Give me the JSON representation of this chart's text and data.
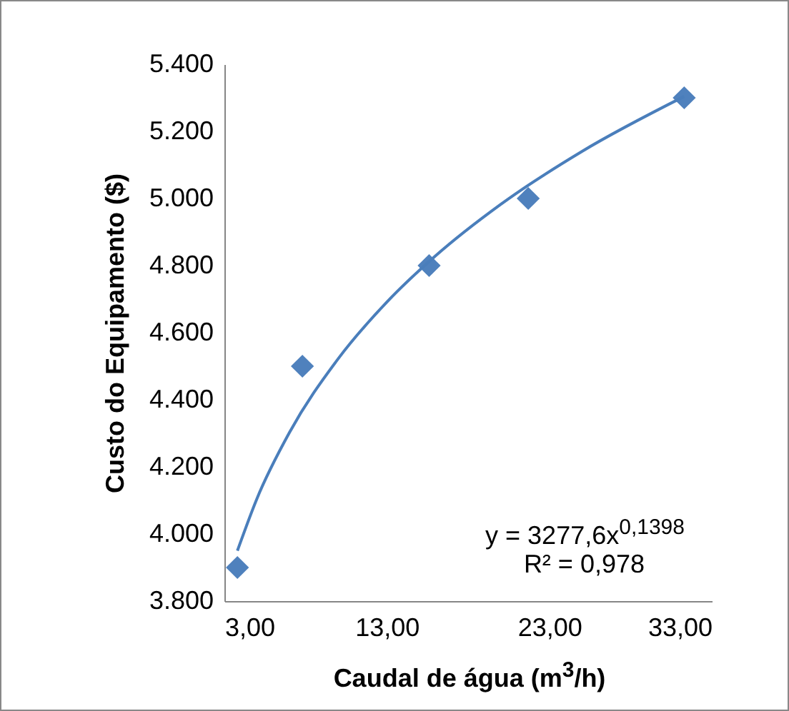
{
  "chart_data": {
    "type": "scatter",
    "xlabel": "Caudal de água (m$^{3}$/h)",
    "ylabel": "Custo do Equipamento ($)",
    "marker": "diamond",
    "xlim": [
      3,
      33
    ],
    "ylim": [
      3800,
      5400
    ],
    "xticks": [
      {
        "value": 3,
        "label": "3,00"
      },
      {
        "value": 13,
        "label": "13,00"
      },
      {
        "value": 23,
        "label": "23,00"
      },
      {
        "value": 33,
        "label": "33,00"
      }
    ],
    "yticks": [
      {
        "value": 3800,
        "label": "3.800"
      },
      {
        "value": 4000,
        "label": "4.000"
      },
      {
        "value": 4200,
        "label": "4.200"
      },
      {
        "value": 4400,
        "label": "4.400"
      },
      {
        "value": 4600,
        "label": "4.600"
      },
      {
        "value": 4800,
        "label": "4.800"
      },
      {
        "value": 5000,
        "label": "5.000"
      },
      {
        "value": 5200,
        "label": "5.200"
      },
      {
        "value": 5400,
        "label": "5.400"
      }
    ],
    "series": [
      {
        "color": "#4f81bd",
        "x": [
          3.8,
          7.8,
          15.6,
          21.7,
          31.3
        ],
        "values": [
          3900,
          4500,
          4800,
          5000,
          5300
        ]
      },
      {
        "type": "line",
        "marker": "none",
        "color": "#4a7ebb",
        "x": [
          3.8,
          5,
          7,
          10,
          13,
          16,
          20,
          25,
          31.3
        ],
        "values": [
          3950,
          4105,
          4302,
          4522,
          4691,
          4829,
          4982,
          5140,
          5304
        ]
      }
    ],
    "annotations": [
      "y = 3277,6x$^{0,1398}$",
      "R² = 0,978"
    ]
  }
}
